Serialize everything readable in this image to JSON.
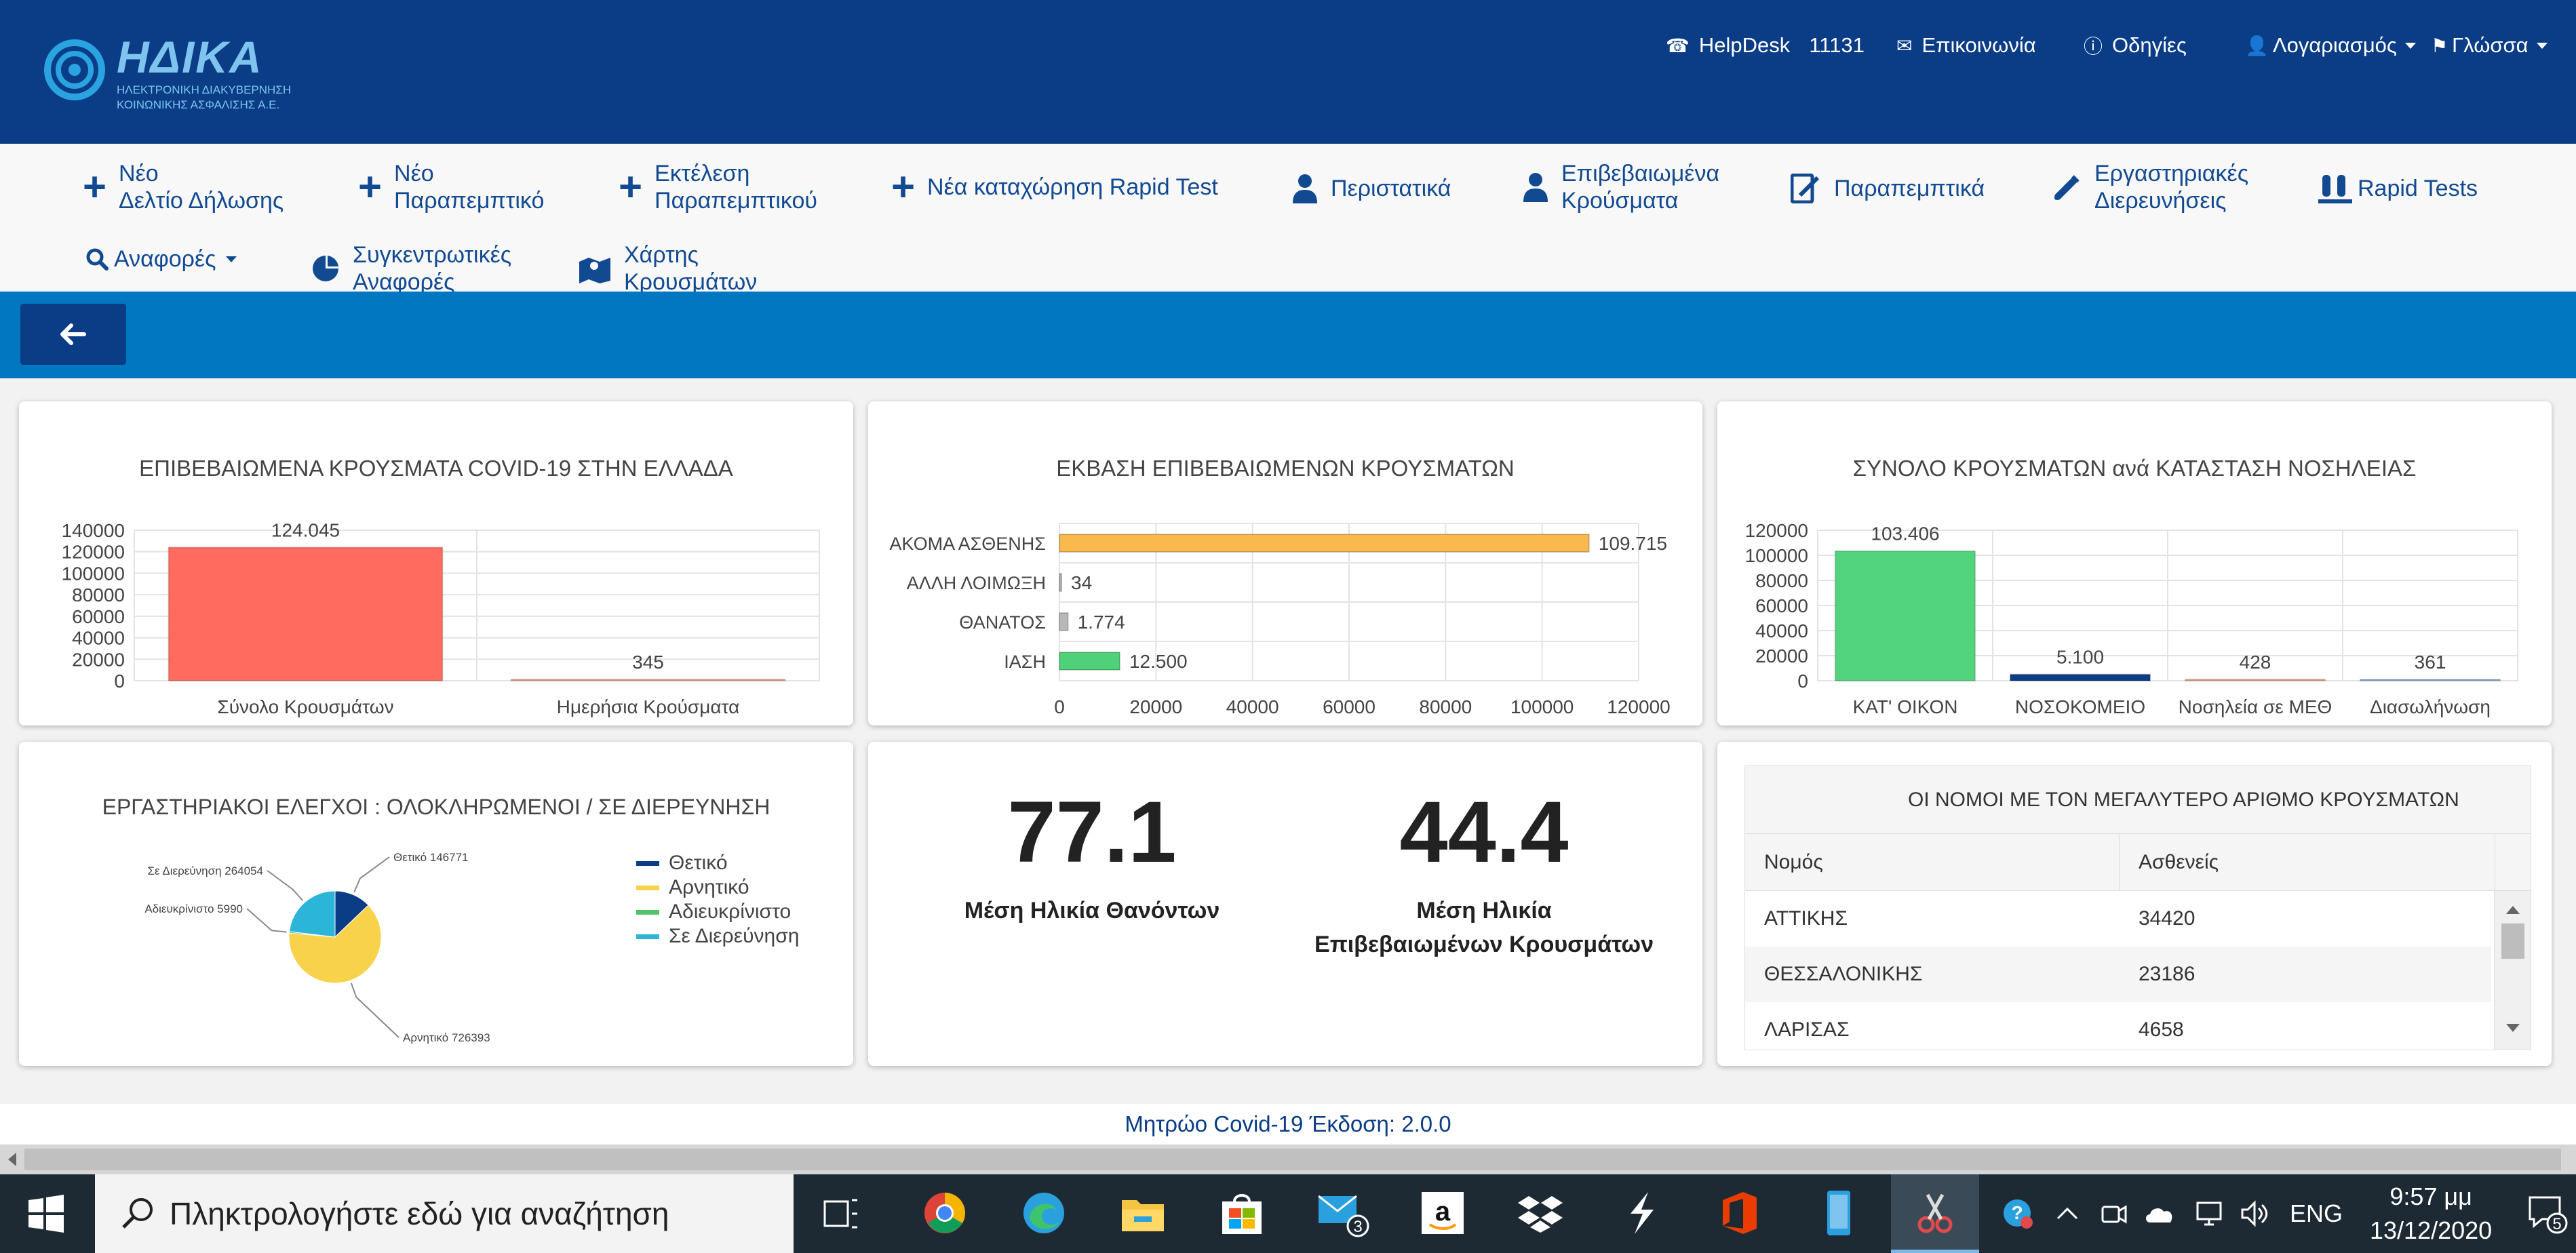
{
  "header": {
    "logo_text": "ΗΔΙΚΑ",
    "logo_subtitle": "ΗΛΕΚΤΡΟΝΙΚΗ ΔΙΑΚΥΒΕΡΝΗΣΗ ΚΟΙΝΩΝΙΚΗΣ ΑΣΦΑΛΙΣΗΣ Α.Ε.",
    "helpdesk_label": "HelpDesk",
    "helpdesk_number": "11131",
    "contact": "Επικοινωνία",
    "instructions": "Οδηγίες",
    "account": "Λογαριασμός",
    "language": "Γλώσσα"
  },
  "menu": {
    "new_declaration_l1": "Νέο",
    "new_declaration_l2": "Δελτίο Δήλωσης",
    "new_referral_l1": "Νέο",
    "new_referral_l2": "Παραπεμπτικό",
    "execute_referral_l1": "Εκτέλεση",
    "execute_referral_l2": "Παραπεμπτικού",
    "new_rapid": "Νέα καταχώρηση Rapid Test",
    "incidents": "Περιστατικά",
    "confirmed_l1": "Επιβεβαιωμένα",
    "confirmed_l2": "Κρούσματα",
    "referrals": "Παραπεμπτικά",
    "lab_l1": "Εργαστηριακές",
    "lab_l2": "Διερευνήσεις",
    "rapid_tests": "Rapid Tests",
    "reports": "Αναφορές",
    "summary_l1": "Συγκεντρωτικές",
    "summary_l2": "Αναφορές",
    "map_l1": "Χάρτης",
    "map_l2": "Κρουσμάτων"
  },
  "chart_data": [
    {
      "type": "bar",
      "title": "ΕΠΙΒΕΒΑΙΩΜΕΝΑ ΚΡΟΥΣΜΑΤΑ COVID-19 ΣΤΗΝ ΕΛΛΑΔΑ",
      "categories": [
        "Σύνολο Κρουσμάτων",
        "Ημερήσια Κρούσματα"
      ],
      "values": [
        124045,
        345
      ],
      "value_labels": [
        "124.045",
        "345"
      ],
      "colors": [
        "#ff6b5f",
        "#f4a582"
      ],
      "ylim": [
        0,
        140000
      ],
      "yticks": [
        "140000",
        "120000",
        "100000",
        "80000",
        "60000",
        "40000",
        "20000",
        "0"
      ],
      "grid": true
    },
    {
      "type": "bar",
      "orientation": "horizontal",
      "title": "ΕΚΒΑΣΗ ΕΠΙΒΕΒΑΙΩΜΕΝΩΝ ΚΡΟΥΣΜΑΤΩΝ",
      "categories": [
        "ΑΚΟΜΑ ΑΣΘΕΝΗΣ",
        "ΑΛΛΗ ΛΟΙΜΩΞΗ",
        "ΘΑΝΑΤΟΣ",
        "ΙΑΣΗ"
      ],
      "values": [
        109715,
        34,
        1774,
        12500
      ],
      "value_labels": [
        "109.715",
        "34",
        "1.774",
        "12.500"
      ],
      "colors": [
        "#f9b94d",
        "#b0b0b0",
        "#b8b8b8",
        "#4fd17a"
      ],
      "xlim": [
        0,
        120000
      ],
      "xticks": [
        "0",
        "20000",
        "40000",
        "60000",
        "80000",
        "100000",
        "120000"
      ],
      "grid": true
    },
    {
      "type": "bar",
      "title": "ΣΥΝΟΛΟ ΚΡΟΥΣΜΑΤΩΝ ανά ΚΑΤΑΣΤΑΣΗ ΝΟΣΗΛΕΙΑΣ",
      "categories": [
        "ΚΑΤ' ΟΙΚΟΝ",
        "ΝΟΣΟΚΟΜΕΙΟ",
        "Νοσηλεία σε ΜΕΘ",
        "Διασωλήνωση"
      ],
      "values": [
        103406,
        5100,
        428,
        361
      ],
      "value_labels": [
        "103.406",
        "5.100",
        "428",
        "361"
      ],
      "colors": [
        "#52d47e",
        "#0a3d86",
        "#f4a582",
        "#8fb4d9"
      ],
      "ylim": [
        0,
        120000
      ],
      "yticks": [
        "120000",
        "100000",
        "80000",
        "60000",
        "40000",
        "20000",
        "0"
      ],
      "grid": true
    },
    {
      "type": "pie",
      "title": "ΕΡΓΑΣΤΗΡΙΑΚΟΙ ΕΛΕΓΧΟΙ : ΟΛΟΚΛΗΡΩΜΕΝΟΙ / ΣΕ ΔΙΕΡΕΥΝΗΣΗ",
      "categories": [
        "Θετικό",
        "Αρνητικό",
        "Αδιευκρίνιστο",
        "Σε Διερεύνηση"
      ],
      "values": [
        146771,
        726393,
        5990,
        264054
      ],
      "slice_labels": [
        "Θετικό 146771",
        "Αρνητικό 726393",
        "Αδιευκρίνιστο 5990",
        "Σε Διερεύνηση 264054"
      ],
      "colors": [
        "#0a3d86",
        "#f9d24b",
        "#4fc26a",
        "#2bb5d8"
      ],
      "legend": "right"
    }
  ],
  "stats": {
    "avg_age_deaths_value": "77.1",
    "avg_age_deaths_label": "Μέση Ηλικία Θανόντων",
    "avg_age_confirmed_value": "44.4",
    "avg_age_confirmed_label_l1": "Μέση Ηλικία",
    "avg_age_confirmed_label_l2": "Επιβεβαιωμένων Κρουσμάτων"
  },
  "table": {
    "title": "ΟΙ ΝΟΜΟΙ ΜΕ ΤΟΝ ΜΕΓΑΛΥΤΕΡΟ ΑΡΙΘΜΟ ΚΡΟΥΣΜΑΤΩΝ",
    "col_prefecture": "Νομός",
    "col_patients": "Ασθενείς",
    "rows": [
      {
        "name": "ΑΤΤΙΚΗΣ",
        "value": "34420"
      },
      {
        "name": "ΘΕΣΣΑΛΟΝΙΚΗΣ",
        "value": "23186"
      },
      {
        "name": "ΛΑΡΙΣΑΣ",
        "value": "4658"
      }
    ]
  },
  "footer": {
    "note": "Μητρώο Covid-19 Έκδοση: 2.0.0"
  },
  "taskbar": {
    "search_placeholder": "Πληκτρολογήστε εδώ για αναζήτηση",
    "mail_badge": "3",
    "lang": "ENG",
    "time": "9:57 μμ",
    "date": "13/12/2020",
    "notif_count": "5",
    "accent": "#0078d7"
  }
}
